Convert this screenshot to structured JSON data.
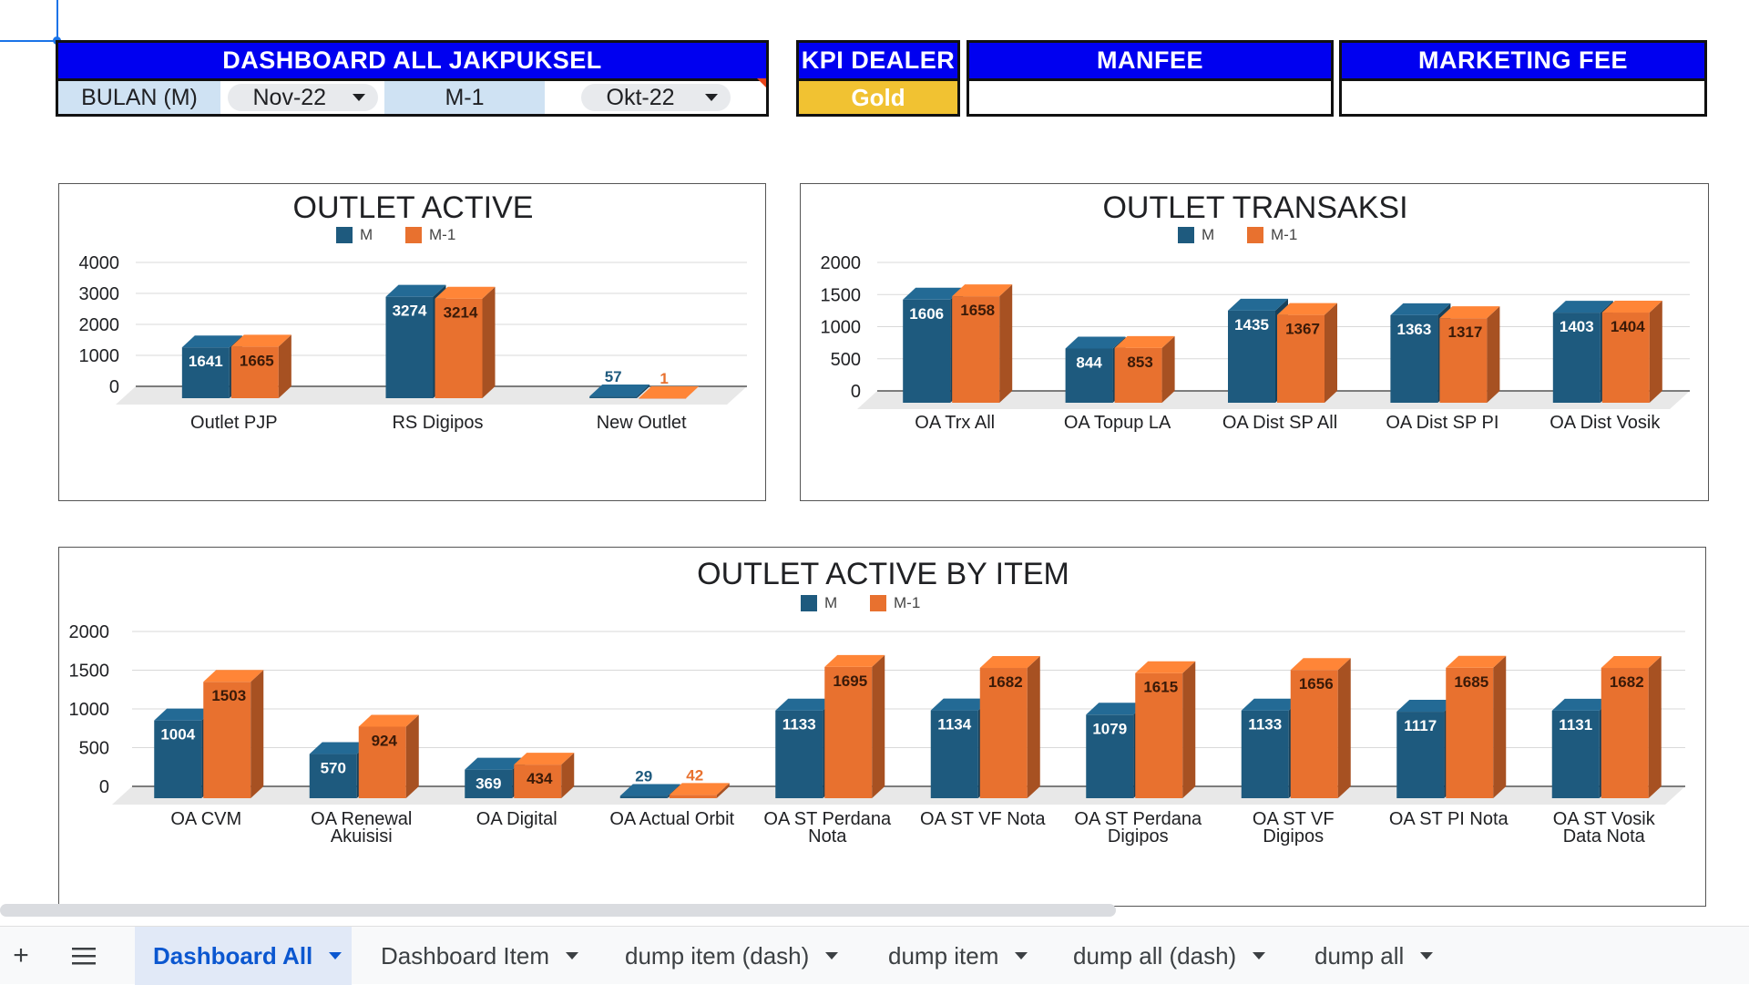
{
  "header": {
    "dashboard_title": "DASHBOARD ALL JAKPUKSEL",
    "bulan_label": "BULAN (M)",
    "bulan_value": "Nov-22",
    "m1_label": "M-1",
    "m1_value": "Okt-22",
    "kpi_title": "KPI DEALER",
    "kpi_value": "Gold",
    "manfee_title": "MANFEE",
    "manfee_value": "",
    "marketing_title": "MARKETING FEE",
    "marketing_value": ""
  },
  "colors": {
    "m": "#1e5a7e",
    "m1": "#e8712f",
    "title_blue": "#0000f0",
    "gold": "#f1c232"
  },
  "chart_data": [
    {
      "type": "bar",
      "title": "OUTLET ACTIVE",
      "categories": [
        "Outlet PJP",
        "RS Digipos",
        "New Outlet"
      ],
      "series": [
        {
          "name": "M",
          "values": [
            1641,
            3274,
            57
          ]
        },
        {
          "name": "M-1",
          "values": [
            1665,
            3214,
            1
          ]
        }
      ],
      "yticks": [
        0,
        1000,
        2000,
        3000,
        4000
      ],
      "ylim": [
        0,
        4000
      ],
      "legend": "top",
      "grid": true
    },
    {
      "type": "bar",
      "title": "OUTLET TRANSAKSI",
      "categories": [
        "OA Trx All",
        "OA Topup LA",
        "OA Dist SP All",
        "OA Dist SP PI",
        "OA Dist Vosik"
      ],
      "series": [
        {
          "name": "M",
          "values": [
            1606,
            844,
            1435,
            1363,
            1403
          ]
        },
        {
          "name": "M-1",
          "values": [
            1658,
            853,
            1367,
            1317,
            1404
          ]
        }
      ],
      "yticks": [
        0,
        500,
        1000,
        1500,
        2000
      ],
      "ylim": [
        0,
        2000
      ],
      "legend": "top",
      "grid": true
    },
    {
      "type": "bar",
      "title": "OUTLET ACTIVE BY ITEM",
      "categories": [
        "OA CVM",
        "OA Renewal Akuisisi",
        "OA Digital",
        "OA Actual Orbit",
        "OA ST Perdana Nota",
        "OA ST VF Nota",
        "OA ST Perdana Digipos",
        "OA ST VF Digipos",
        "OA ST PI Nota",
        "OA ST Vosik Data Nota"
      ],
      "category_lines": [
        [
          "OA CVM"
        ],
        [
          "OA Renewal",
          "Akuisisi"
        ],
        [
          "OA Digital"
        ],
        [
          "OA Actual Orbit"
        ],
        [
          "OA ST Perdana",
          "Nota"
        ],
        [
          "OA ST VF Nota"
        ],
        [
          "OA ST Perdana",
          "Digipos"
        ],
        [
          "OA ST VF",
          "Digipos"
        ],
        [
          "OA ST PI Nota"
        ],
        [
          "OA ST Vosik",
          "Data Nota"
        ]
      ],
      "series": [
        {
          "name": "M",
          "values": [
            1004,
            570,
            369,
            29,
            1133,
            1134,
            1079,
            1133,
            1117,
            1131
          ]
        },
        {
          "name": "M-1",
          "values": [
            1503,
            924,
            434,
            42,
            1695,
            1682,
            1615,
            1656,
            1685,
            1682
          ]
        }
      ],
      "yticks": [
        0,
        500,
        1000,
        1500,
        2000
      ],
      "ylim": [
        0,
        2000
      ],
      "legend": "top",
      "grid": true
    }
  ],
  "tabs": [
    {
      "label": "Dashboard All",
      "active": true
    },
    {
      "label": "Dashboard Item",
      "active": false
    },
    {
      "label": "dump item (dash)",
      "active": false
    },
    {
      "label": "dump item",
      "active": false
    },
    {
      "label": "dump all (dash)",
      "active": false
    },
    {
      "label": "dump all",
      "active": false
    }
  ],
  "icons": {
    "add_sheet": "plus-icon",
    "all_sheets": "menu-icon"
  }
}
